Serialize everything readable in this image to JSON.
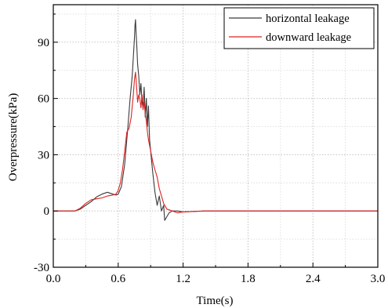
{
  "chart_data": {
    "type": "line",
    "xlabel": "Time(s)",
    "ylabel": "Overpressure(kPa)",
    "xlim": [
      0.0,
      3.0
    ],
    "ylim": [
      -30,
      110
    ],
    "xticks": [
      0.0,
      0.6,
      1.2,
      1.8,
      2.4,
      3.0
    ],
    "xtick_labels": [
      "0.0",
      "0.6",
      "1.2",
      "1.8",
      "2.4",
      "3.0"
    ],
    "yticks": [
      -30,
      0,
      30,
      60,
      90
    ],
    "ytick_labels": [
      "-30",
      "0",
      "30",
      "60",
      "90"
    ],
    "grid": true,
    "legend_position": "top-right",
    "series": [
      {
        "name": "horizontal leakage",
        "color": "#3a3a3a",
        "x": [
          0.0,
          0.2,
          0.25,
          0.3,
          0.35,
          0.4,
          0.45,
          0.5,
          0.55,
          0.58,
          0.6,
          0.63,
          0.66,
          0.69,
          0.71,
          0.73,
          0.74,
          0.75,
          0.755,
          0.76,
          0.765,
          0.77,
          0.78,
          0.79,
          0.8,
          0.81,
          0.82,
          0.83,
          0.84,
          0.85,
          0.86,
          0.87,
          0.88,
          0.89,
          0.9,
          0.92,
          0.94,
          0.96,
          0.98,
          1.0,
          1.02,
          1.03,
          1.05,
          1.07,
          1.1,
          1.15,
          1.2,
          1.4,
          1.6,
          1.8,
          2.0,
          2.2,
          2.4,
          2.6,
          2.8,
          3.0
        ],
        "y": [
          0,
          0,
          1,
          3,
          5,
          7.5,
          9,
          10,
          9,
          8.5,
          9,
          13,
          25,
          45,
          60,
          72,
          82,
          92,
          99,
          102,
          95,
          90,
          78,
          72,
          62,
          68,
          58,
          55,
          66,
          50,
          60,
          45,
          56,
          38,
          32,
          20,
          10,
          3,
          8,
          0,
          3,
          -5,
          -3,
          -1,
          0,
          0,
          -0.5,
          0,
          0,
          0,
          0,
          0,
          0,
          0,
          0,
          0
        ]
      },
      {
        "name": "downward leakage",
        "color": "#e02020",
        "x": [
          0.0,
          0.2,
          0.25,
          0.3,
          0.35,
          0.4,
          0.45,
          0.5,
          0.55,
          0.58,
          0.6,
          0.62,
          0.64,
          0.66,
          0.68,
          0.7,
          0.72,
          0.74,
          0.75,
          0.76,
          0.77,
          0.78,
          0.79,
          0.8,
          0.81,
          0.82,
          0.83,
          0.84,
          0.85,
          0.86,
          0.87,
          0.88,
          0.9,
          0.92,
          0.94,
          0.96,
          0.98,
          1.0,
          1.02,
          1.05,
          1.1,
          1.15,
          1.2,
          1.4,
          1.6,
          1.8,
          2.0,
          2.2,
          2.4,
          2.6,
          2.8,
          3.0
        ],
        "y": [
          0,
          0,
          1.5,
          4,
          6,
          6.5,
          7,
          8,
          8.5,
          9,
          11,
          15,
          22,
          32,
          42,
          44,
          50,
          62,
          70,
          74,
          66,
          58,
          62,
          60,
          55,
          62,
          54,
          58,
          52,
          48,
          42,
          38,
          32,
          26,
          22,
          18,
          12,
          8,
          4,
          1,
          0,
          -1,
          -0.5,
          0,
          0,
          0,
          0,
          0,
          0,
          0,
          0,
          0
        ]
      }
    ]
  }
}
